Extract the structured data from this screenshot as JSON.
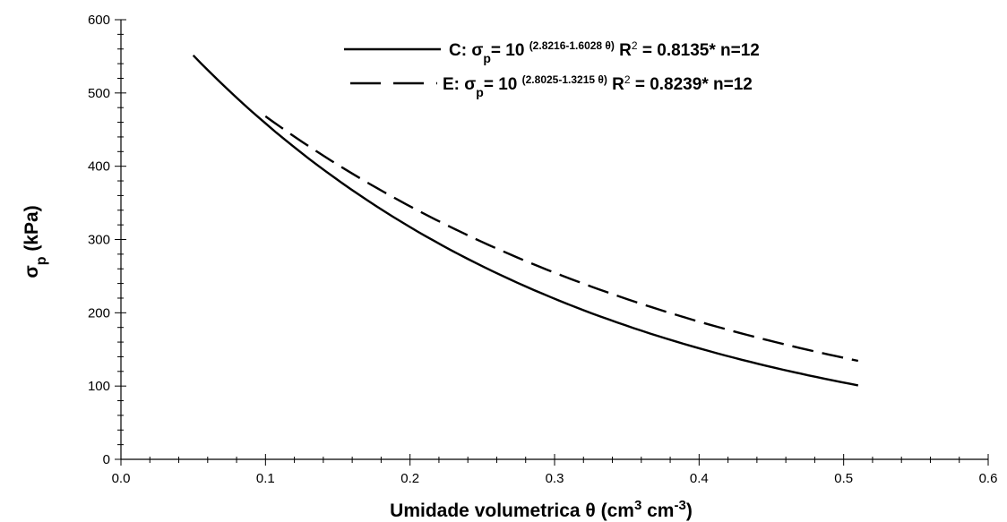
{
  "chart_data": {
    "type": "line",
    "title": "",
    "xlabel": {
      "main": "Umidade volumetrica θ (cm",
      "sup1": "3",
      "mid": " cm",
      "sup2": "-3",
      "end": ")"
    },
    "ylabel": {
      "main": "σ",
      "sub": "p",
      "rest": " (kPa)"
    },
    "xlim": [
      0.0,
      0.6
    ],
    "ylim": [
      0,
      600
    ],
    "xticks": [
      "0.0",
      "0.1",
      "0.2",
      "0.3",
      "0.4",
      "0.5",
      "0.6"
    ],
    "yticks": [
      "0",
      "100",
      "200",
      "300",
      "400",
      "500",
      "600"
    ],
    "grid": false,
    "legend_position": "top-right",
    "series": [
      {
        "key": "C",
        "style": "solid",
        "color": "#000000",
        "legend": {
          "prefix": "C: σ",
          "sub": "p",
          "eq": "= 10 ",
          "exp": "(2.8216-1.6028 θ)",
          "r2": " R",
          "r2sup": "2",
          "rest": " = 0.8135* n=12"
        },
        "a": 2.8216,
        "b": 1.6028,
        "x": [
          0.05,
          0.1,
          0.15,
          0.2,
          0.25,
          0.3,
          0.35,
          0.4,
          0.45,
          0.51
        ],
        "y": [
          550,
          458,
          382,
          318,
          265,
          221,
          184,
          153,
          128,
          102
        ]
      },
      {
        "key": "E",
        "style": "dashed",
        "color": "#000000",
        "legend": {
          "prefix": "E: σ",
          "sub": "p",
          "eq": "= 10 ",
          "exp": "(2.8025-1.3215 θ)",
          "r2": " R",
          "r2sup": "2",
          "rest": " = 0.8239* n=12"
        },
        "a": 2.8025,
        "b": 1.3215,
        "x": [
          0.1,
          0.15,
          0.2,
          0.25,
          0.3,
          0.35,
          0.4,
          0.45,
          0.51
        ],
        "y": [
          468,
          403,
          347,
          299,
          258,
          222,
          191,
          165,
          137
        ]
      }
    ]
  }
}
